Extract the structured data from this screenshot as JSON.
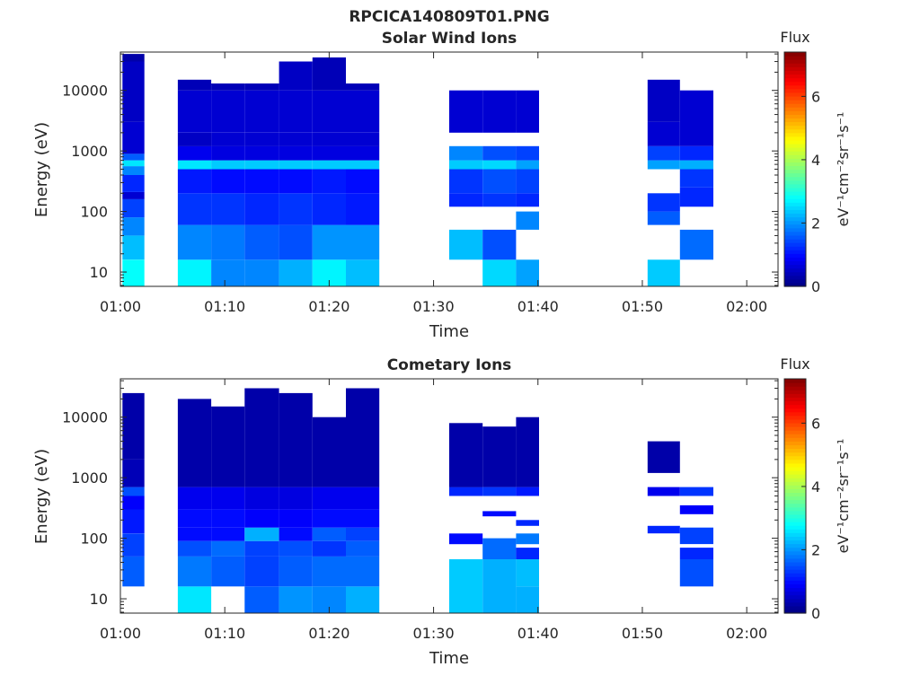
{
  "figure_title": "RPCICA140809T01.PNG",
  "colorbar": {
    "label": "eV⁻¹cm⁻²sr⁻¹s⁻¹",
    "title": "Flux",
    "min": 0,
    "max": 7.4,
    "ticks": [
      "0",
      "2",
      "4",
      "6"
    ],
    "colormap": "jet"
  },
  "chart_data": [
    {
      "type": "heatmap",
      "title": "Solar Wind Ions",
      "xlabel": "Time",
      "ylabel": "Energy (eV)",
      "x_ticks": [
        "01:00",
        "01:10",
        "01:20",
        "01:30",
        "01:40",
        "01:50",
        "02:00"
      ],
      "y_ticks": [
        "10",
        "100",
        "1000",
        "10000"
      ],
      "y_scale": "log",
      "xlim_minutes": [
        0,
        63
      ],
      "ylim_eV": [
        5.8,
        43000
      ],
      "columns": [
        {
          "t0": 0.2,
          "t1": 2.3,
          "cells": [
            [
              5.8,
              16,
              2.8
            ],
            [
              16,
              40,
              2.3
            ],
            [
              40,
              80,
              1.9
            ],
            [
              80,
              160,
              1.4
            ],
            [
              160,
              210,
              0.6
            ],
            [
              210,
              400,
              1.2
            ],
            [
              400,
              560,
              1.9
            ],
            [
              560,
              700,
              2.6
            ],
            [
              700,
              900,
              1.6
            ],
            [
              900,
              3000,
              0.6
            ],
            [
              3000,
              30000,
              0.5
            ],
            [
              30000,
              40000,
              0.3
            ]
          ]
        },
        {
          "t0": 5.5,
          "t1": 8.7,
          "cells": [
            [
              5.8,
              16,
              2.7
            ],
            [
              16,
              60,
              1.9
            ],
            [
              60,
              200,
              1.3
            ],
            [
              200,
              500,
              1.1
            ],
            [
              500,
              700,
              2.6
            ],
            [
              700,
              1200,
              0.8
            ],
            [
              1200,
              2000,
              0.5
            ],
            [
              2000,
              10000,
              0.6
            ],
            [
              10000,
              15000,
              0.4
            ]
          ]
        },
        {
          "t0": 8.7,
          "t1": 11.9,
          "cells": [
            [
              5.8,
              16,
              1.9
            ],
            [
              16,
              60,
              1.8
            ],
            [
              60,
              200,
              1.3
            ],
            [
              200,
              500,
              1.0
            ],
            [
              500,
              700,
              2.4
            ],
            [
              700,
              1200,
              0.7
            ],
            [
              1200,
              2000,
              0.6
            ],
            [
              2000,
              10000,
              0.6
            ],
            [
              10000,
              13000,
              0.4
            ]
          ]
        },
        {
          "t0": 11.9,
          "t1": 15.2,
          "cells": [
            [
              5.8,
              16,
              1.9
            ],
            [
              16,
              60,
              1.6
            ],
            [
              60,
              200,
              1.2
            ],
            [
              200,
              500,
              1.0
            ],
            [
              500,
              700,
              2.4
            ],
            [
              700,
              1200,
              0.7
            ],
            [
              1200,
              2000,
              0.6
            ],
            [
              2000,
              10000,
              0.6
            ],
            [
              10000,
              13000,
              0.4
            ]
          ]
        },
        {
          "t0": 15.2,
          "t1": 18.4,
          "cells": [
            [
              5.8,
              16,
              2.2
            ],
            [
              16,
              60,
              1.5
            ],
            [
              60,
              200,
              1.3
            ],
            [
              200,
              500,
              1.0
            ],
            [
              500,
              700,
              2.4
            ],
            [
              700,
              1200,
              0.7
            ],
            [
              1200,
              2000,
              0.6
            ],
            [
              2000,
              10000,
              0.6
            ],
            [
              10000,
              30000,
              0.5
            ]
          ]
        },
        {
          "t0": 18.4,
          "t1": 21.6,
          "cells": [
            [
              5.8,
              16,
              2.7
            ],
            [
              16,
              60,
              2.0
            ],
            [
              60,
              200,
              1.2
            ],
            [
              200,
              500,
              1.1
            ],
            [
              500,
              700,
              2.4
            ],
            [
              700,
              1200,
              0.7
            ],
            [
              1200,
              2000,
              0.6
            ],
            [
              2000,
              10000,
              0.6
            ],
            [
              10000,
              35000,
              0.4
            ]
          ]
        },
        {
          "t0": 21.6,
          "t1": 24.8,
          "cells": [
            [
              5.8,
              16,
              2.3
            ],
            [
              16,
              60,
              2.0
            ],
            [
              60,
              200,
              1.1
            ],
            [
              200,
              500,
              1.0
            ],
            [
              500,
              700,
              2.4
            ],
            [
              700,
              1200,
              0.7
            ],
            [
              1200,
              2000,
              0.6
            ],
            [
              2000,
              10000,
              0.6
            ],
            [
              10000,
              13000,
              0.4
            ]
          ]
        },
        {
          "t0": 31.5,
          "t1": 34.7,
          "cells": [
            [
              16,
              50,
              2.3
            ],
            [
              120,
              200,
              1.2
            ],
            [
              200,
              500,
              1.3
            ],
            [
              500,
              700,
              2.4
            ],
            [
              700,
              1200,
              1.9
            ],
            [
              2000,
              10000,
              0.6
            ]
          ]
        },
        {
          "t0": 34.7,
          "t1": 37.9,
          "cells": [
            [
              5.8,
              16,
              2.5
            ],
            [
              16,
              50,
              1.5
            ],
            [
              120,
              200,
              1.3
            ],
            [
              200,
              500,
              1.5
            ],
            [
              500,
              700,
              2.5
            ],
            [
              700,
              1200,
              1.5
            ],
            [
              2000,
              10000,
              0.6
            ]
          ]
        },
        {
          "t0": 37.9,
          "t1": 40.1,
          "cells": [
            [
              5.8,
              16,
              2.1
            ],
            [
              50,
              100,
              1.9
            ],
            [
              120,
              200,
              1.2
            ],
            [
              200,
              500,
              1.4
            ],
            [
              500,
              700,
              2.1
            ],
            [
              700,
              1200,
              1.4
            ],
            [
              2000,
              10000,
              0.6
            ]
          ]
        },
        {
          "t0": 50.5,
          "t1": 53.6,
          "cells": [
            [
              5.8,
              16,
              2.4
            ],
            [
              60,
              100,
              1.6
            ],
            [
              100,
              200,
              1.3
            ],
            [
              500,
              700,
              2.1
            ],
            [
              700,
              1200,
              1.4
            ],
            [
              1200,
              3000,
              0.6
            ],
            [
              3000,
              15000,
              0.5
            ]
          ]
        },
        {
          "t0": 53.6,
          "t1": 56.8,
          "cells": [
            [
              16,
              50,
              1.7
            ],
            [
              120,
              250,
              1.2
            ],
            [
              250,
              500,
              1.3
            ],
            [
              500,
              700,
              2.2
            ],
            [
              700,
              1200,
              1.2
            ],
            [
              1200,
              3000,
              0.6
            ],
            [
              3000,
              10000,
              0.6
            ]
          ]
        }
      ],
      "gaps_minutes": [
        [
          2.3,
          5.5
        ],
        [
          24.8,
          31.5
        ],
        [
          40.1,
          50.5
        ],
        [
          56.8,
          63
        ]
      ]
    },
    {
      "type": "heatmap",
      "title": "Cometary Ions",
      "xlabel": "Time",
      "ylabel": "Energy (eV)",
      "x_ticks": [
        "01:00",
        "01:10",
        "01:20",
        "01:30",
        "01:40",
        "01:50",
        "02:00"
      ],
      "y_ticks": [
        "10",
        "100",
        "1000",
        "10000"
      ],
      "y_scale": "log",
      "xlim_minutes": [
        0,
        63
      ],
      "ylim_eV": [
        5.8,
        43000
      ],
      "columns": [
        {
          "t0": 0.2,
          "t1": 2.3,
          "cells": [
            [
              16,
              50,
              1.6
            ],
            [
              50,
              120,
              1.4
            ],
            [
              120,
              300,
              1.1
            ],
            [
              300,
              500,
              0.9
            ],
            [
              500,
              700,
              1.5
            ],
            [
              700,
              2000,
              0.4
            ],
            [
              2000,
              25000,
              0.3
            ]
          ]
        },
        {
          "t0": 5.5,
          "t1": 8.7,
          "cells": [
            [
              5.8,
              16,
              2.6
            ],
            [
              16,
              50,
              1.8
            ],
            [
              50,
              90,
              1.5
            ],
            [
              90,
              150,
              1.0
            ],
            [
              150,
              300,
              1.0
            ],
            [
              300,
              700,
              0.8
            ],
            [
              700,
              20000,
              0.3
            ]
          ]
        },
        {
          "t0": 8.7,
          "t1": 11.9,
          "cells": [
            [
              16,
              50,
              1.6
            ],
            [
              50,
              90,
              1.7
            ],
            [
              90,
              150,
              1.0
            ],
            [
              150,
              300,
              1.0
            ],
            [
              300,
              700,
              0.8
            ],
            [
              700,
              15000,
              0.3
            ]
          ]
        },
        {
          "t0": 11.9,
          "t1": 15.2,
          "cells": [
            [
              5.8,
              16,
              1.6
            ],
            [
              16,
              50,
              1.4
            ],
            [
              50,
              90,
              1.4
            ],
            [
              90,
              150,
              2.2
            ],
            [
              150,
              300,
              0.9
            ],
            [
              300,
              700,
              0.7
            ],
            [
              700,
              30000,
              0.3
            ]
          ]
        },
        {
          "t0": 15.2,
          "t1": 18.4,
          "cells": [
            [
              5.8,
              16,
              2.0
            ],
            [
              16,
              50,
              1.6
            ],
            [
              50,
              90,
              1.5
            ],
            [
              90,
              150,
              1.0
            ],
            [
              150,
              300,
              0.9
            ],
            [
              300,
              700,
              0.7
            ],
            [
              700,
              25000,
              0.3
            ]
          ]
        },
        {
          "t0": 18.4,
          "t1": 21.6,
          "cells": [
            [
              5.8,
              16,
              1.9
            ],
            [
              16,
              50,
              1.7
            ],
            [
              50,
              90,
              1.3
            ],
            [
              90,
              150,
              1.6
            ],
            [
              150,
              300,
              1.0
            ],
            [
              300,
              700,
              0.8
            ],
            [
              700,
              10000,
              0.3
            ]
          ]
        },
        {
          "t0": 21.6,
          "t1": 24.8,
          "cells": [
            [
              5.8,
              16,
              2.2
            ],
            [
              16,
              50,
              1.7
            ],
            [
              50,
              90,
              1.6
            ],
            [
              90,
              150,
              1.4
            ],
            [
              150,
              300,
              1.0
            ],
            [
              300,
              700,
              0.8
            ],
            [
              700,
              30000,
              0.3
            ]
          ]
        },
        {
          "t0": 31.5,
          "t1": 34.7,
          "cells": [
            [
              5.8,
              45,
              2.4
            ],
            [
              80,
              120,
              1.0
            ],
            [
              500,
              700,
              1.2
            ],
            [
              700,
              8000,
              0.3
            ]
          ]
        },
        {
          "t0": 34.7,
          "t1": 37.9,
          "cells": [
            [
              5.8,
              45,
              2.2
            ],
            [
              45,
              100,
              1.7
            ],
            [
              230,
              280,
              1.0
            ],
            [
              500,
              700,
              1.3
            ],
            [
              700,
              7000,
              0.3
            ]
          ]
        },
        {
          "t0": 37.9,
          "t1": 40.1,
          "cells": [
            [
              5.8,
              16,
              2.2
            ],
            [
              16,
              45,
              2.3
            ],
            [
              45,
              70,
              1.2
            ],
            [
              80,
              120,
              1.8
            ],
            [
              160,
              200,
              1.2
            ],
            [
              500,
              700,
              1.1
            ],
            [
              700,
              10000,
              0.3
            ]
          ]
        },
        {
          "t0": 50.5,
          "t1": 53.6,
          "cells": [
            [
              120,
              160,
              1.2
            ],
            [
              500,
              700,
              0.8
            ],
            [
              1200,
              4000,
              0.3
            ]
          ]
        },
        {
          "t0": 53.6,
          "t1": 56.8,
          "cells": [
            [
              16,
              45,
              1.5
            ],
            [
              45,
              70,
              1.2
            ],
            [
              80,
              150,
              1.4
            ],
            [
              250,
              350,
              0.9
            ],
            [
              500,
              700,
              1.3
            ]
          ]
        }
      ],
      "gaps_minutes": [
        [
          2.3,
          5.5
        ],
        [
          24.8,
          31.5
        ],
        [
          40.1,
          50.5
        ],
        [
          56.8,
          63
        ]
      ]
    }
  ]
}
